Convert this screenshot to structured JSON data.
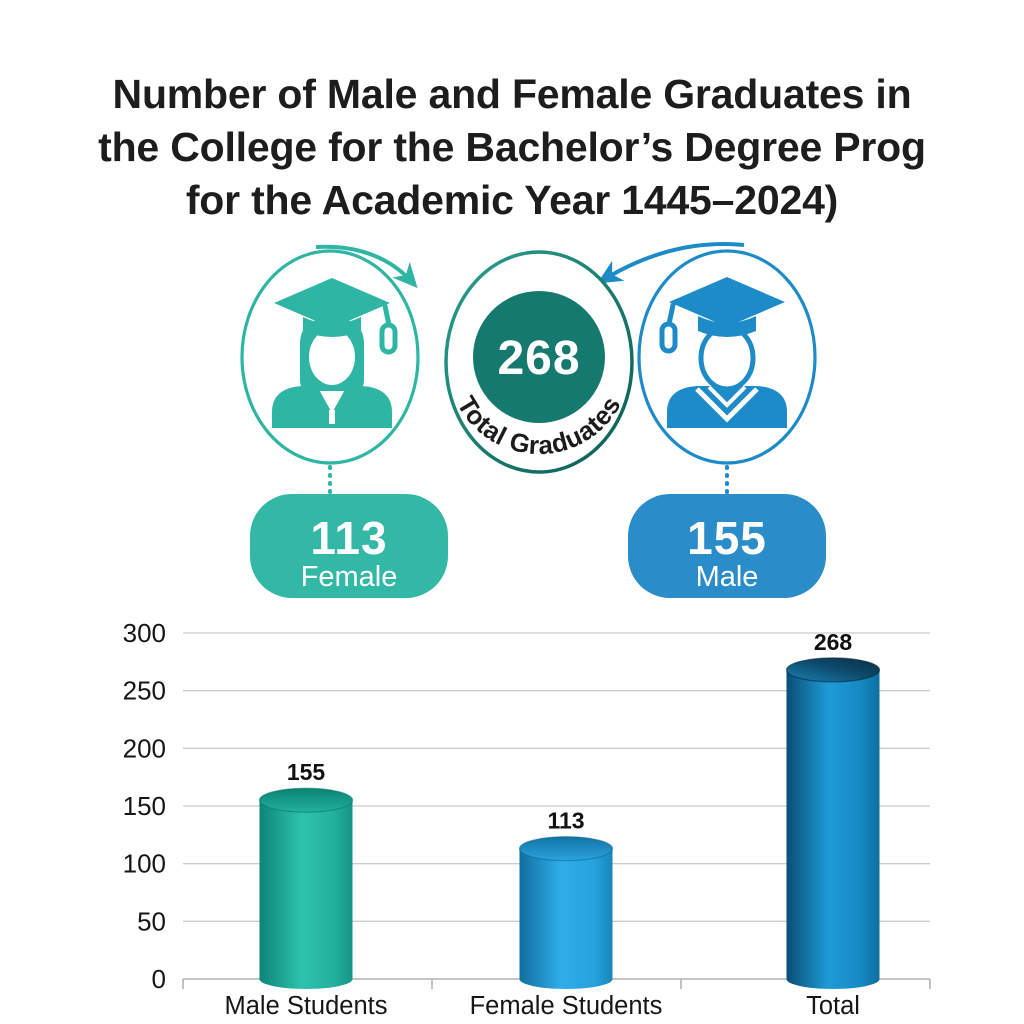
{
  "page": {
    "background": "#ffffff"
  },
  "title": {
    "lines": [
      "Number of Male and Female Graduates in",
      "the College for the Bachelor’s Degree Prog",
      "for the Academic Year 1445–2024)"
    ],
    "color": "#1d1d1d"
  },
  "infographic": {
    "total": {
      "value": "268",
      "label": "Total Graduates",
      "fill": "#15796e",
      "ring_color": "#0f6358"
    },
    "female": {
      "value": "113",
      "label": "Female",
      "color": "#2fb5a3",
      "badge_color": "#34b8a6"
    },
    "male": {
      "value": "155",
      "label": "Male",
      "color": "#1e8bc9",
      "badge_color": "#2a8cc8"
    }
  },
  "chart_data": {
    "type": "bar",
    "categories": [
      "Male Students",
      "Female Students",
      "Total"
    ],
    "values": [
      155,
      113,
      268
    ],
    "bar_colors": [
      "#18a892",
      "#1f9ad8",
      "#11719f"
    ],
    "title": "",
    "xlabel": "",
    "ylabel": "",
    "ylim": [
      0,
      300
    ],
    "yticks": [
      0,
      50,
      100,
      150,
      200,
      250,
      300
    ],
    "grid": true,
    "legend": false,
    "value_labels": true
  }
}
